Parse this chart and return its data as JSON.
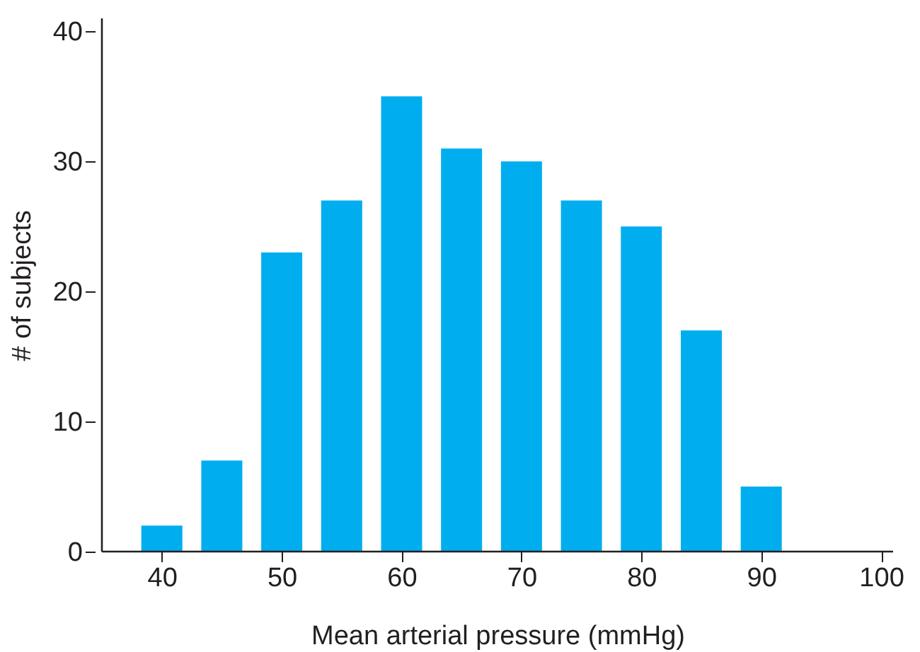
{
  "chart_data": {
    "type": "bar",
    "xlabel": "Mean arterial pressure (mmHg)",
    "ylabel": "# of subjects",
    "x": [
      40,
      45,
      50,
      55,
      60,
      65,
      70,
      75,
      80,
      85,
      90
    ],
    "values": [
      2,
      7,
      23,
      27,
      35,
      31,
      30,
      27,
      25,
      17,
      5
    ],
    "color": "#00aeef",
    "xlim": [
      35,
      101
    ],
    "xticks": [
      40,
      50,
      60,
      70,
      80,
      90,
      100
    ],
    "ylim": [
      0,
      41
    ],
    "yticks": [
      0,
      10,
      20,
      30,
      40
    ],
    "grid": false
  }
}
